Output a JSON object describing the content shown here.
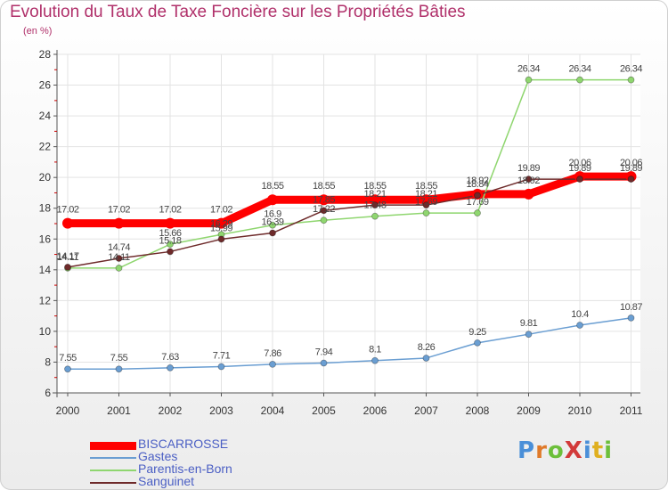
{
  "title": "Evolution du Taux de Taxe Foncière sur les Propriétés Bâties",
  "subtitle": "(en %)",
  "logo": "ProXiti",
  "chart_data": {
    "type": "line",
    "x": [
      "2000",
      "2001",
      "2002",
      "2003",
      "2004",
      "2005",
      "2006",
      "2007",
      "2008",
      "2009",
      "2010",
      "2011"
    ],
    "ylim": [
      6,
      28
    ],
    "y_ticks": [
      "6",
      "8",
      "10",
      "12",
      "14",
      "16",
      "18",
      "20",
      "22",
      "24",
      "26",
      "28"
    ],
    "grid": true,
    "legend_position": "bottom-left",
    "series": [
      {
        "name": "BISCARROSSE",
        "color": "#ff0000",
        "values": [
          17.02,
          17.02,
          17.02,
          17.02,
          18.55,
          18.55,
          18.55,
          18.55,
          18.92,
          18.92,
          20.06,
          20.06
        ],
        "labels": [
          "17.02",
          "17.02",
          "17.02",
          "17.02",
          "18.55",
          "18.55",
          "18.55",
          "18.55",
          "18.92",
          "18.92",
          "20.06",
          "20.06"
        ]
      },
      {
        "name": "Gastes",
        "color": "#6a9ed2",
        "values": [
          7.55,
          7.55,
          7.63,
          7.71,
          7.86,
          7.94,
          8.1,
          8.26,
          9.25,
          9.81,
          10.4,
          10.87
        ],
        "labels": [
          "7.55",
          "7.55",
          "7.63",
          "7.71",
          "7.86",
          "7.94",
          "8.1",
          "8.26",
          "9.25",
          "9.81",
          "10.4",
          "10.87"
        ]
      },
      {
        "name": "Parentis-en-Born",
        "color": "#8fd66f",
        "values": [
          14.11,
          14.11,
          15.66,
          16.29,
          16.9,
          17.22,
          17.48,
          17.69,
          17.69,
          26.34,
          26.34,
          26.34
        ],
        "labels": [
          "14.11",
          "14.11",
          "15.66",
          "16.29",
          "16.9",
          "17.22",
          "17.48",
          "17.69",
          "17.69",
          "26.34",
          "26.34",
          "26.34"
        ]
      },
      {
        "name": "Sanguinet",
        "color": "#6e2a2a",
        "values": [
          14.17,
          14.74,
          15.18,
          15.99,
          16.39,
          17.85,
          18.21,
          18.21,
          18.84,
          19.89,
          19.89,
          19.89
        ],
        "labels": [
          "14.17",
          "14.74",
          "15.18",
          "15.99",
          "16.39",
          "17.85",
          "18.21",
          "18.21",
          "18.84",
          "19.89",
          "19.89",
          "19.89"
        ]
      }
    ]
  }
}
